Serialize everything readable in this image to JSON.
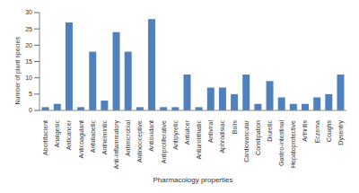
{
  "chart_data": {
    "type": "bar",
    "x_label": "Pharmacology properties",
    "y_label": "Number of plant species",
    "categories": [
      "Abortifacient",
      "Analgesic",
      "Anticancer",
      "Anticoagulant",
      "Antidiabetic",
      "Anthelmintic",
      "Anti-inflammatory",
      "Antimicrobial",
      "Antinociceptive",
      "Antioxidant",
      "Antiproliferative",
      "Antipyretic",
      "Antiulcer",
      "Antiurolithiatic",
      "Antiviral",
      "Aphrodisiac",
      "Boils",
      "Cardiovascular",
      "Constipation",
      "Diuretic",
      "Gastro-intestinal",
      "Hepatoprotective",
      "Arthritis",
      "Eczema",
      "Coughs",
      "Dysentry"
    ],
    "values": [
      1,
      2,
      27,
      1,
      18,
      3,
      24,
      18,
      1,
      28,
      1,
      1,
      11,
      1,
      7,
      7,
      5,
      11,
      2,
      9,
      4,
      2,
      2,
      4,
      5,
      11
    ],
    "color": "#4f81bd",
    "ylim": [
      0,
      30
    ],
    "yticks": [
      0,
      5,
      10,
      15,
      20,
      25,
      30
    ],
    "grid": false
  }
}
